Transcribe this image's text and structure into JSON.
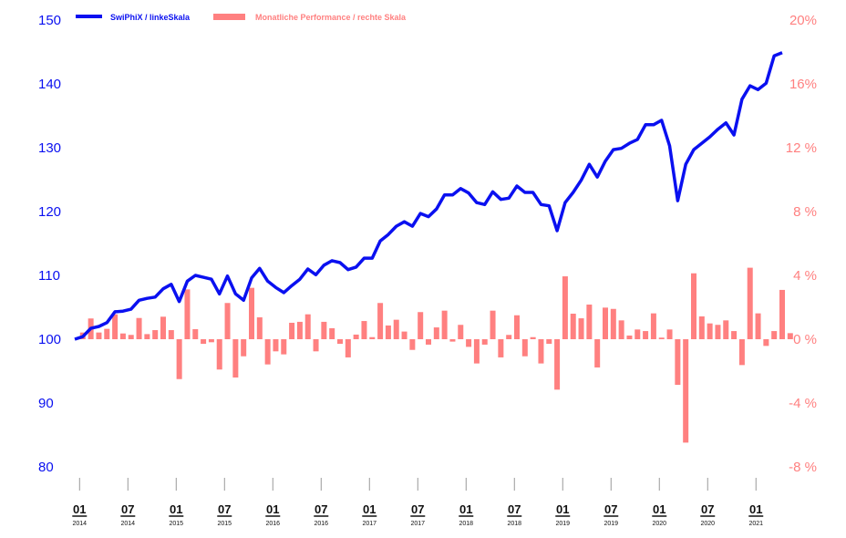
{
  "chart_data": {
    "type": "line+bar",
    "colors": {
      "line": "#0a10f0",
      "bar": "#ff8080"
    },
    "legend": {
      "line_label": "SwiPhiX / linkeSkala",
      "bar_label": "Monatliche Performance / rechte Skala",
      "placement": "top-left"
    },
    "left_axis": {
      "ylim": [
        80,
        150
      ],
      "ticks": [
        "150",
        "140",
        "130",
        "120",
        "110",
        "100",
        "90",
        "80"
      ],
      "values": [
        150,
        140,
        130,
        120,
        110,
        100,
        90,
        80
      ]
    },
    "right_axis": {
      "ylim": [
        -8,
        20
      ],
      "ticks": [
        "20%",
        "16%",
        "12 %",
        "8 %",
        "4 %",
        "0 %",
        "-4 %",
        "-8 %"
      ],
      "values": [
        20,
        16,
        12,
        8,
        4,
        0,
        -4,
        -8
      ]
    },
    "x_ticks": [
      {
        "month": "01",
        "year": "2014"
      },
      {
        "month": "07",
        "year": "2014"
      },
      {
        "month": "01",
        "year": "2015"
      },
      {
        "month": "07",
        "year": "2015"
      },
      {
        "month": "01",
        "year": "2016"
      },
      {
        "month": "07",
        "year": "2016"
      },
      {
        "month": "01",
        "year": "2017"
      },
      {
        "month": "07",
        "year": "2017"
      },
      {
        "month": "01",
        "year": "2018"
      },
      {
        "month": "07",
        "year": "2018"
      },
      {
        "month": "01",
        "year": "2019"
      },
      {
        "month": "07",
        "year": "2019"
      },
      {
        "month": "01",
        "year": "2020"
      },
      {
        "month": "07",
        "year": "2020"
      },
      {
        "month": "01",
        "year": "2021"
      }
    ],
    "series": [
      {
        "name": "SwiPhiX / linkeSkala",
        "axis": "left",
        "type": "line",
        "values": [
          100,
          100.4,
          101.7,
          102,
          102.6,
          104.3,
          104.4,
          104.7,
          106.1,
          106.4,
          106.6,
          107.9,
          108.6,
          105.9,
          109.1,
          110,
          109.7,
          109.4,
          107.1,
          109.9,
          107.1,
          106.1,
          109.6,
          111.1,
          109.1,
          108.1,
          107.3,
          108.4,
          109.4,
          111,
          110.1,
          111.6,
          112.3,
          112,
          110.9,
          111.3,
          112.7,
          112.7,
          115.4,
          116.4,
          117.7,
          118.4,
          117.7,
          119.7,
          119.2,
          120.4,
          122.6,
          122.6,
          123.6,
          122.9,
          121.4,
          121.1,
          123.1,
          121.9,
          122.1,
          124,
          123,
          123,
          121.1,
          120.9,
          117,
          121.4,
          123,
          124.9,
          127.4,
          125.4,
          127.9,
          129.7,
          129.9,
          130.7,
          131.3,
          133.6,
          133.6,
          134.3,
          130.3,
          121.7,
          127.4,
          129.7,
          130.7,
          131.7,
          132.9,
          133.9,
          132,
          137.6,
          139.7,
          139.1,
          140.1,
          144.4,
          144.9
        ]
      },
      {
        "name": "Monatliche Performance / rechte Skala",
        "axis": "right",
        "type": "bar",
        "values": [
          0.42,
          1.3,
          0.42,
          0.65,
          1.56,
          0.36,
          0.27,
          1.33,
          0.32,
          0.57,
          1.41,
          0.57,
          -2.5,
          3.12,
          0.63,
          -0.29,
          -0.19,
          -1.9,
          2.27,
          -2.4,
          -1.07,
          3.22,
          1.37,
          -1.58,
          -0.76,
          -0.95,
          1.03,
          1.09,
          1.56,
          -0.76,
          1.09,
          0.69,
          -0.29,
          -1.14,
          0.29,
          1.14,
          0.13,
          2.27,
          0.86,
          1.22,
          0.48,
          -0.67,
          1.7,
          -0.34,
          0.74,
          1.79,
          -0.15,
          0.9,
          -0.48,
          -1.52,
          -0.34,
          1.79,
          -1.14,
          0.27,
          1.5,
          -1.07,
          0.13,
          -1.52,
          -0.29,
          -3.16,
          3.94,
          1.6,
          1.31,
          2.17,
          -1.77,
          1.98,
          1.9,
          1.18,
          0.23,
          0.61,
          0.51,
          1.62,
          0.1,
          0.61,
          -2.86,
          -6.48,
          4.13,
          1.43,
          0.99,
          0.9,
          1.18,
          0.51,
          -1.62,
          4.48,
          1.62,
          -0.42,
          0.51,
          3.09,
          0.38
        ]
      }
    ]
  }
}
